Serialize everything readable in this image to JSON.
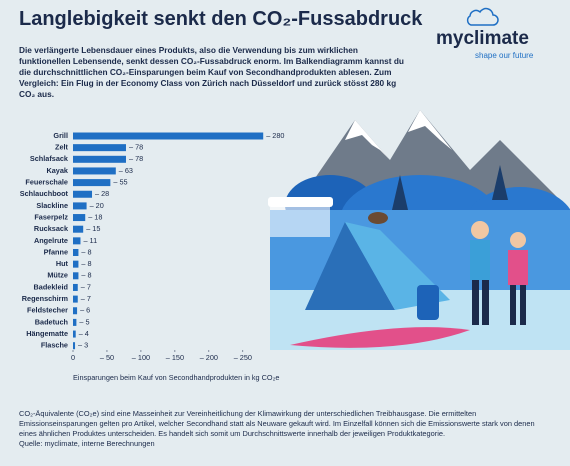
{
  "header": {
    "title": "Langlebigkeit senkt den CO₂-Fussabdruck",
    "logo": "myclimate",
    "slogan": "shape our future"
  },
  "intro": "Die verlängerte Lebensdauer eines Produkts, also die Verwendung bis zum wirklichen funktionellen Lebensende, senkt dessen CO₂-Fussabdruck enorm. Im Balkendiagramm kannst du die durchschnittlichen CO₂-Einsparungen beim Kauf von Secondhandprodukten ablesen. Zum Vergleich: Ein Flug in der Economy Class von Zürich nach Düsseldorf und zurück stösst 280 kg CO₂ aus.",
  "chart_data": {
    "type": "hbar",
    "x_label": "Einsparungen beim Kauf von Secondhandprodukten in kg CO₂e",
    "categories": [
      "Grill",
      "Zelt",
      "Schlafsack",
      "Kayak",
      "Feuerschale",
      "Schlauchboot",
      "Slackline",
      "Faserpelz",
      "Rucksack",
      "Angelrute",
      "Pfanne",
      "Hut",
      "Mütze",
      "Badekleid",
      "Regenschirm",
      "Feldstecher",
      "Badetuch",
      "Hängematte",
      "Flasche"
    ],
    "values": [
      -280,
      -78,
      -78,
      -63,
      -55,
      -28,
      -20,
      -18,
      -15,
      -11,
      -8,
      -8,
      -8,
      -7,
      -7,
      -6,
      -5,
      -4,
      -3
    ],
    "value_labels": [
      "– 280",
      "– 78",
      "– 78",
      "– 63",
      "– 55",
      "– 28",
      "– 20",
      "– 18",
      "– 15",
      "– 11",
      "– 8",
      "– 8",
      "– 8",
      "– 7",
      "– 7",
      "– 6",
      "– 5",
      "– 4",
      "– 3"
    ],
    "color": "#1f6fc4",
    "xlim": [
      0,
      -290
    ],
    "xticks": [
      0,
      {
        "value": -50,
        "label": "– 50"
      },
      {
        "value": -100,
        "label": "– 100"
      },
      {
        "value": -150,
        "label": "– 150"
      },
      {
        "value": -200,
        "label": "– 200"
      },
      {
        "value": -250,
        "label": "– 250"
      }
    ]
  },
  "footnote": [
    "CO₂-Äquivalente (CO₂e) sind eine Masseinheit zur Vereinheitlichung der Klimawirkung der unterschiedlichen Treibhausgase. Die ermittelten Emissionseinsparungen gelten pro Artikel, welcher Secondhand statt als Neuware gekauft wird. Im Einzelfall können sich die Emissionswerte stark von denen eines ähnlichen Produktes unterscheiden. Es handelt sich somit um Durchschnittswerte innerhalb der jeweiligen Produktkategorie.",
    "Quelle: myclimate, interne Berechnungen"
  ]
}
